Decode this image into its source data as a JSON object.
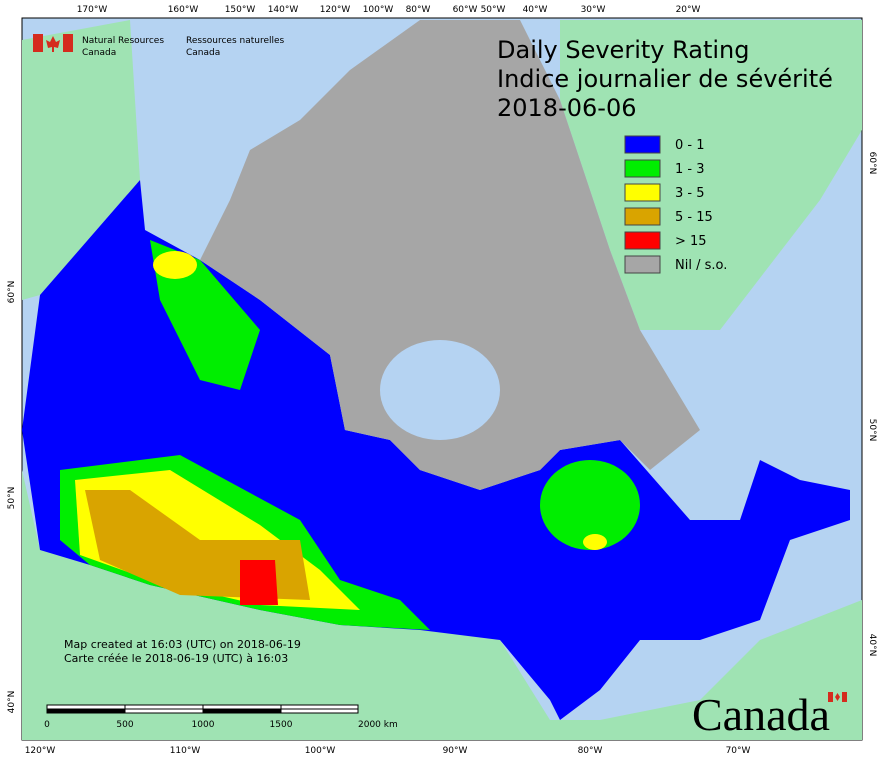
{
  "header": {
    "department_en": [
      "Natural Resources",
      "Canada"
    ],
    "department_fr": [
      "Ressources naturelles",
      "Canada"
    ]
  },
  "title": {
    "lines": [
      "Daily Severity Rating",
      "Indice journalier de sévérité",
      "2018-06-06"
    ]
  },
  "legend": [
    {
      "label": "0 - 1",
      "color": "#0000ff"
    },
    {
      "label": "1 - 3",
      "color": "#00ee00"
    },
    {
      "label": "3 - 5",
      "color": "#ffff00"
    },
    {
      "label": "5 - 15",
      "color": "#d9a400"
    },
    {
      "label": "> 15",
      "color": "#ff0000"
    },
    {
      "label": "Nil / s.o.",
      "color": "#a6a6a6"
    }
  ],
  "axes": {
    "top": [
      "170°W",
      "160°W",
      "150°W",
      "140°W",
      "120°W",
      "100°W",
      "80°W",
      "60°W",
      "50°W",
      "40°W",
      "30°W",
      "20°W"
    ],
    "bottom": [
      "120°W",
      "110°W",
      "100°W",
      "90°W",
      "80°W",
      "70°W"
    ],
    "left": [
      "60°N",
      "50°N",
      "40°N"
    ],
    "right": [
      "60°N",
      "50°N",
      "40°N"
    ]
  },
  "notes": [
    "Map created at 16:03 (UTC) on 2018-06-19",
    "Carte créée le 2018-06-19 (UTC) à 16:03"
  ],
  "scale_bar": {
    "labels": [
      "0",
      "500",
      "1000",
      "1500",
      "2000 km"
    ]
  },
  "wordmark": "Canada"
}
